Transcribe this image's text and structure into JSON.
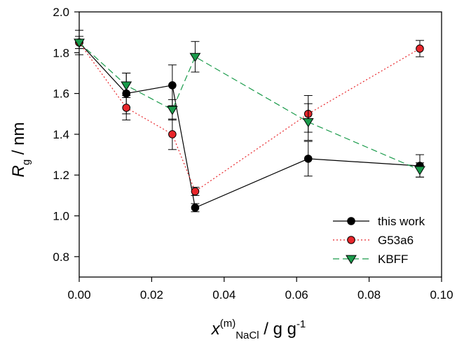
{
  "chart_data": {
    "type": "line",
    "xlabel": {
      "main": "x",
      "sup": "(m)",
      "sub": "NaCl",
      "unit": " / g g",
      "unit_sup": "-1"
    },
    "ylabel": {
      "main": "R",
      "sub": "g",
      "unit": " / nm"
    },
    "xlim": [
      0.0,
      0.1
    ],
    "ylim": [
      0.7,
      2.0
    ],
    "x_ticks": [
      "0.00",
      "0.02",
      "0.04",
      "0.06",
      "0.08",
      "0.10"
    ],
    "y_ticks": [
      "0.8",
      "1.0",
      "1.2",
      "1.4",
      "1.6",
      "1.8",
      "2.0"
    ],
    "grid": false,
    "legend_position": "bottom-right",
    "series": [
      {
        "name": "this work",
        "color": "#000000",
        "line_style": "solid",
        "marker": "circle",
        "x": [
          0.0,
          0.013,
          0.0257,
          0.032,
          0.0632,
          0.094
        ],
        "y": [
          1.85,
          1.6,
          1.64,
          1.04,
          1.28,
          1.245
        ],
        "yerr": [
          0.06,
          0.1,
          0.1,
          0.02,
          0.085,
          0.055
        ]
      },
      {
        "name": "G53a6",
        "color": "#e8262b",
        "line_style": "dotted",
        "marker": "circle",
        "x": [
          0.0,
          0.013,
          0.0257,
          0.032,
          0.0632,
          0.094
        ],
        "y": [
          1.85,
          1.53,
          1.4,
          1.12,
          1.5,
          1.82
        ],
        "yerr": [
          0.03,
          0.06,
          0.075,
          0.02,
          0.09,
          0.04
        ]
      },
      {
        "name": "KBFF",
        "color": "#1a9b4b",
        "line_style": "dashed",
        "marker": "triangle-down",
        "x": [
          0.0,
          0.013,
          0.0257,
          0.032,
          0.0632,
          0.094
        ],
        "y": [
          1.85,
          1.64,
          1.52,
          1.78,
          1.46,
          1.225
        ],
        "yerr": [
          0.03,
          0.06,
          0.05,
          0.075,
          0.09,
          0.035
        ]
      }
    ]
  }
}
